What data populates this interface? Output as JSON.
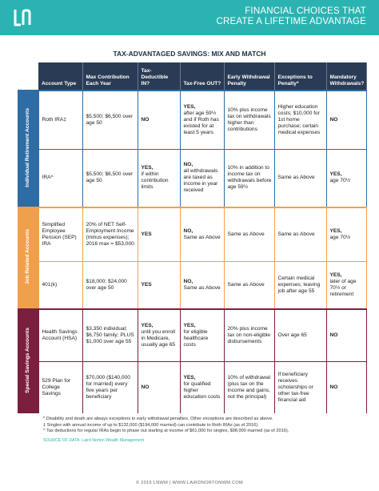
{
  "header": {
    "tagline_1": "FINANCIAL CHOICES THAT",
    "tagline_2": "CREATE A LIFETIME ADVANTAGE"
  },
  "title": "TAX-ADVANTAGED SAVINGS: MIX AND MATCH",
  "table": {
    "columns": [
      "Account Type",
      "Max Contribution Each Year",
      "Tax-Deductible IN?",
      "Tax-Free OUT?",
      "Early Withdrawal Penalty",
      "Exceptions to Penalty*",
      "Mandatory Withdrawals?"
    ],
    "groups": [
      {
        "label": "Individual Retirement Accounts",
        "color": "#2e6da4",
        "rows": [
          [
            {
              "text": "Roth IRA‡"
            },
            {
              "text": "$5,500; $6,500 over age 50"
            },
            {
              "strong": "NO"
            },
            {
              "strong": "YES,",
              "text": "after age 59½ and if Roth has existed for at least 5 years"
            },
            {
              "text": "10% plus income tax on withdrawals higher than contributions"
            },
            {
              "text": "Higher education costs; $10,000 for 1st home purchase; certain medical expenses"
            },
            {
              "strong": "NO"
            }
          ],
          [
            {
              "text": "IRA^"
            },
            {
              "text": "$5,500; $6,500 over age 50"
            },
            {
              "strong": "YES,",
              "text": "if within contribution limits"
            },
            {
              "strong": "NO,",
              "text": "all withdrawals are taxed as income in year received"
            },
            {
              "text": "10% in addition to income tax on withdrawals before age 59½"
            },
            {
              "text": "Same as Above"
            },
            {
              "strong": "YES,",
              "text": "age 70½"
            }
          ]
        ]
      },
      {
        "label": "Job Related Accounts",
        "color": "#f0a04b",
        "rows": [
          [
            {
              "text": "Simplified Employee Pension (SEP) IRA"
            },
            {
              "text": "20% of NET Self-Employment Income (minus expenses); 2016 max = $53,000"
            },
            {
              "strong": "YES"
            },
            {
              "strong": "NO,",
              "text": "Same as Above"
            },
            {
              "text": "Same as Above"
            },
            {
              "text": "Same as Above"
            },
            {
              "strong": "YES,",
              "text": "age 70½"
            }
          ],
          [
            {
              "text": "401(k)"
            },
            {
              "text": "$18,000; $24,000 over age 50"
            },
            {
              "strong": "YES"
            },
            {
              "strong": "NO,",
              "text": "Same as Above"
            },
            {
              "text": "Same as Above"
            },
            {
              "text": "Certain medical expenses; leaving job after age 55"
            },
            {
              "strong": "YES,",
              "text": "later of age 70½ or retirement"
            }
          ]
        ]
      },
      {
        "label": "Special Savings Accounts",
        "color": "#7a1f3d",
        "rows": [
          [
            {
              "text": "Health Savings Account (HSA)"
            },
            {
              "text": "$3,350 individual; $6,750 family; PLUS $1,000 over age 55"
            },
            {
              "strong": "YES,",
              "text": "until you enroll in Medicare, usually age 65"
            },
            {
              "strong": "YES,",
              "text": "for eligible healthcare costs"
            },
            {
              "text": "20% plus income tax on non-eligible disbursements"
            },
            {
              "text": "Over age 65"
            },
            {
              "strong": "NO"
            }
          ],
          [
            {
              "text": "529 Plan for College Savings"
            },
            {
              "text": "$70,000 ($140,000 for married) every five years per beneficiary"
            },
            {
              "strong": "NO"
            },
            {
              "strong": "YES,",
              "text": "for qualified higher education costs"
            },
            {
              "text": "10% of withdrawal (plus tax on the income and gains, not the principal)"
            },
            {
              "text": "If beneficiary receives scholarships or other tax-free financial aid"
            },
            {
              "strong": "NO"
            }
          ]
        ]
      }
    ]
  },
  "footnotes": [
    "* Disability and death are always exceptions to early withdrawal penalties. Other exceptions are described as above.",
    "‡ Singles with annual income of up to $132,000 ($194,000 married) can contribute to Roth IRAs (as of 2016).",
    "^ Tax deductions for regular IRAs begin to phase out starting at income of $61,000 for singles, $98,000 married (as of 2016)."
  ],
  "source": "SOURCE OF DATA: Laird Norton Wealth Management",
  "footer": "© 2016 LNWM | WWW.LAIRDNORTONWM.COM"
}
